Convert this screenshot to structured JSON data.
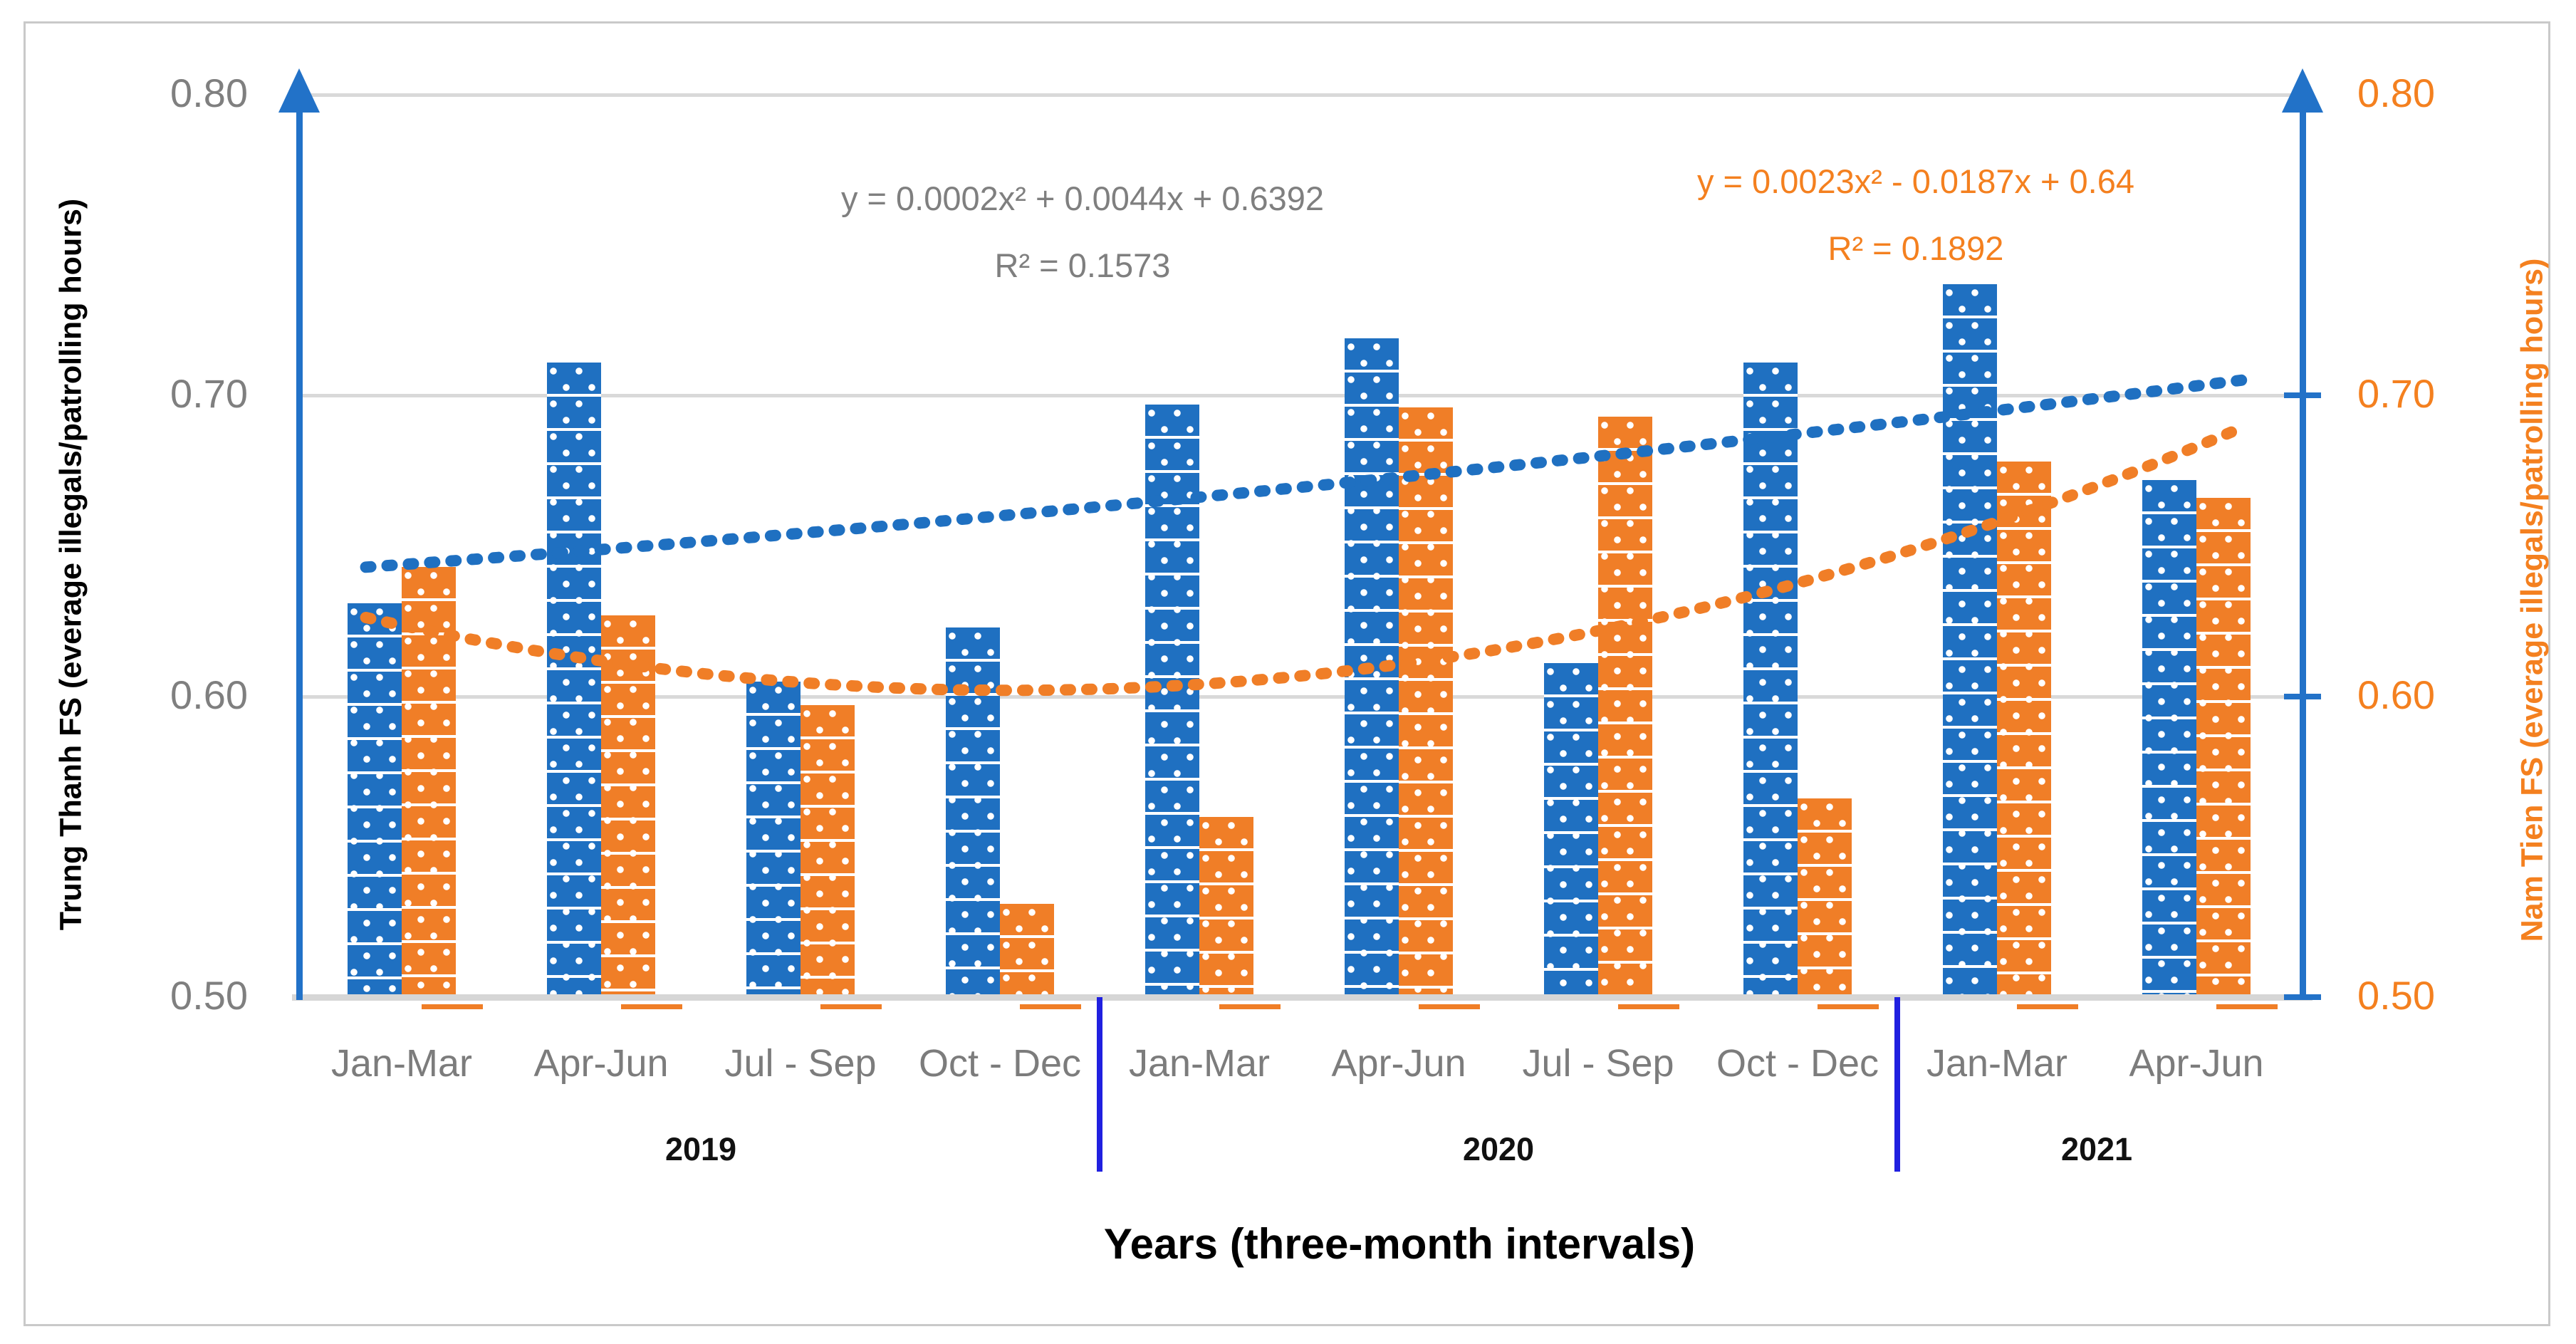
{
  "chart_data": {
    "type": "bar",
    "title": "",
    "xlabel": "Years (three-month intervals)",
    "ylabel_left": "Trung Thanh FS (everage illegals/patrolling hours)",
    "ylabel_right": "Nam Tien FS (everage illegals/patrolling hours)",
    "ylim": [
      0.5,
      0.8
    ],
    "grid": true,
    "categories": [
      "Jan-Mar",
      "Apr-Jun",
      "Jul - Sep",
      "Oct - Dec",
      "Jan-Mar",
      "Apr-Jun",
      "Jul - Sep",
      "Oct - Dec",
      "Jan-Mar",
      "Apr-Jun"
    ],
    "year_groups": [
      {
        "label": "2019",
        "start": 0,
        "end": 4
      },
      {
        "label": "2020",
        "start": 4,
        "end": 8
      },
      {
        "label": "2021",
        "start": 8,
        "end": 10
      }
    ],
    "series": [
      {
        "name": "Trung Thanh FS",
        "color": "#1f70c1",
        "axis": "left",
        "values": [
          0.631,
          0.711,
          0.605,
          0.623,
          0.697,
          0.719,
          0.611,
          0.711,
          0.737,
          0.672
        ]
      },
      {
        "name": "Nam Tien FS",
        "color": "#f07e27",
        "axis": "right",
        "values": [
          0.643,
          0.627,
          0.597,
          0.531,
          0.56,
          0.696,
          0.693,
          0.566,
          0.678,
          0.666
        ]
      }
    ],
    "y_axis_left": {
      "ticks": [
        "0.80",
        "0.70",
        "0.60",
        "0.50"
      ],
      "color": "#7f7f7f",
      "handle_color": "#2e75b6"
    },
    "y_axis_right": {
      "ticks": [
        "0.80",
        "0.70",
        "0.60",
        "0.50"
      ],
      "color": "#f4801f",
      "handle_color": "#f4801f"
    },
    "trendlines": [
      {
        "series": "Trung Thanh FS",
        "color": "#1f70c1",
        "a": 0.0002,
        "b": 0.0044,
        "c": 0.6392,
        "equation": "y = 0.0002x² + 0.0044x + 0.6392",
        "r2": "R² = 0.1573",
        "label_color": "#7f7f7f"
      },
      {
        "series": "Nam Tien FS",
        "color": "#f07e27",
        "a": 0.0023,
        "b": -0.0187,
        "c": 0.64,
        "equation": "y = 0.0023x² - 0.0187x + 0.64",
        "r2": "R² = 0.1892",
        "label_color": "#f4801f"
      }
    ]
  }
}
